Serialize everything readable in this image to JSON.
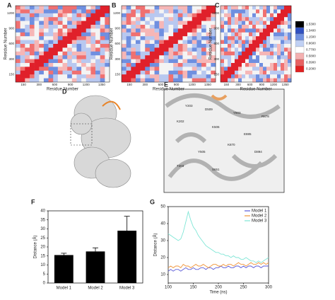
{
  "panels": {
    "letters": [
      "A",
      "B",
      "C",
      "D",
      "E",
      "F",
      "G"
    ]
  },
  "heatmaps": {
    "x_label": "Residue Number",
    "y_label": "Residue Number",
    "xticks": [
      "150",
      "300",
      "600",
      "900",
      "1200",
      "1350"
    ],
    "yticks": [
      "150",
      "300",
      "600",
      "900",
      "1200"
    ],
    "colorbar_ticks": [
      "1.5300",
      "1.3400",
      "1.1500",
      "0.9600",
      "0.7700",
      "0.5800",
      "0.3900",
      "0.2000"
    ]
  },
  "structure_labels": [
    "Y203",
    "K202",
    "D509",
    "K506",
    "Y803",
    "R878",
    "E885",
    "K870",
    "D894",
    "Y505",
    "T203",
    "S651"
  ],
  "chart_data": [
    {
      "type": "bar",
      "categories": [
        "Model 1",
        "Model 2",
        "Model 3"
      ],
      "values": [
        15.5,
        17.5,
        29
      ],
      "errors": [
        1,
        2,
        8
      ],
      "color": "#000000",
      "ylim": [
        0,
        40
      ],
      "yticks": [
        0,
        5,
        10,
        15,
        20,
        25,
        30,
        35,
        40
      ],
      "y_label": "Distance (Å)"
    },
    {
      "type": "line",
      "x_label": "Time (ns)",
      "y_label": "Distance (Å)",
      "legend": "upper right",
      "xlim": [
        100,
        300
      ],
      "xticks": [
        100,
        150,
        200,
        250,
        300
      ],
      "ylim": [
        5,
        50
      ],
      "yticks": [
        10,
        20,
        30,
        40,
        50
      ],
      "x": [
        100,
        105,
        110,
        115,
        120,
        125,
        130,
        135,
        140,
        145,
        150,
        155,
        160,
        165,
        170,
        175,
        180,
        185,
        190,
        195,
        200,
        205,
        210,
        215,
        220,
        225,
        230,
        235,
        240,
        245,
        250,
        255,
        260,
        265,
        270,
        275,
        280,
        285,
        290,
        295,
        300
      ],
      "series": [
        {
          "name": "Model 1",
          "color": "#5a5ad8",
          "values": [
            12,
            13,
            12,
            13,
            13,
            12,
            13,
            14,
            13,
            13,
            14,
            13,
            13,
            14,
            14,
            13,
            14,
            14,
            13,
            14,
            14,
            15,
            14,
            14,
            15,
            14,
            14,
            15,
            15,
            14,
            15,
            14,
            15,
            15,
            14,
            15,
            15,
            14,
            15,
            15,
            15
          ]
        },
        {
          "name": "Model 2",
          "color": "#f0953a",
          "values": [
            14,
            15,
            14,
            15,
            15,
            14,
            16,
            15,
            15,
            14,
            15,
            16,
            15,
            15,
            16,
            15,
            14,
            15,
            16,
            16,
            15,
            15,
            16,
            15,
            16,
            16,
            15,
            16,
            17,
            16,
            16,
            15,
            16,
            17,
            16,
            16,
            17,
            16,
            17,
            16,
            17
          ]
        },
        {
          "name": "Model 3",
          "color": "#7fe6d6",
          "values": [
            34,
            33,
            32,
            31,
            30,
            31,
            35,
            41,
            47,
            42,
            38,
            36,
            33,
            31,
            29,
            27,
            26,
            25,
            24,
            23,
            23,
            22,
            22,
            21,
            21,
            20,
            21,
            20,
            20,
            19,
            19,
            20,
            19,
            18,
            18,
            17,
            18,
            17,
            18,
            19,
            20
          ]
        }
      ]
    }
  ]
}
